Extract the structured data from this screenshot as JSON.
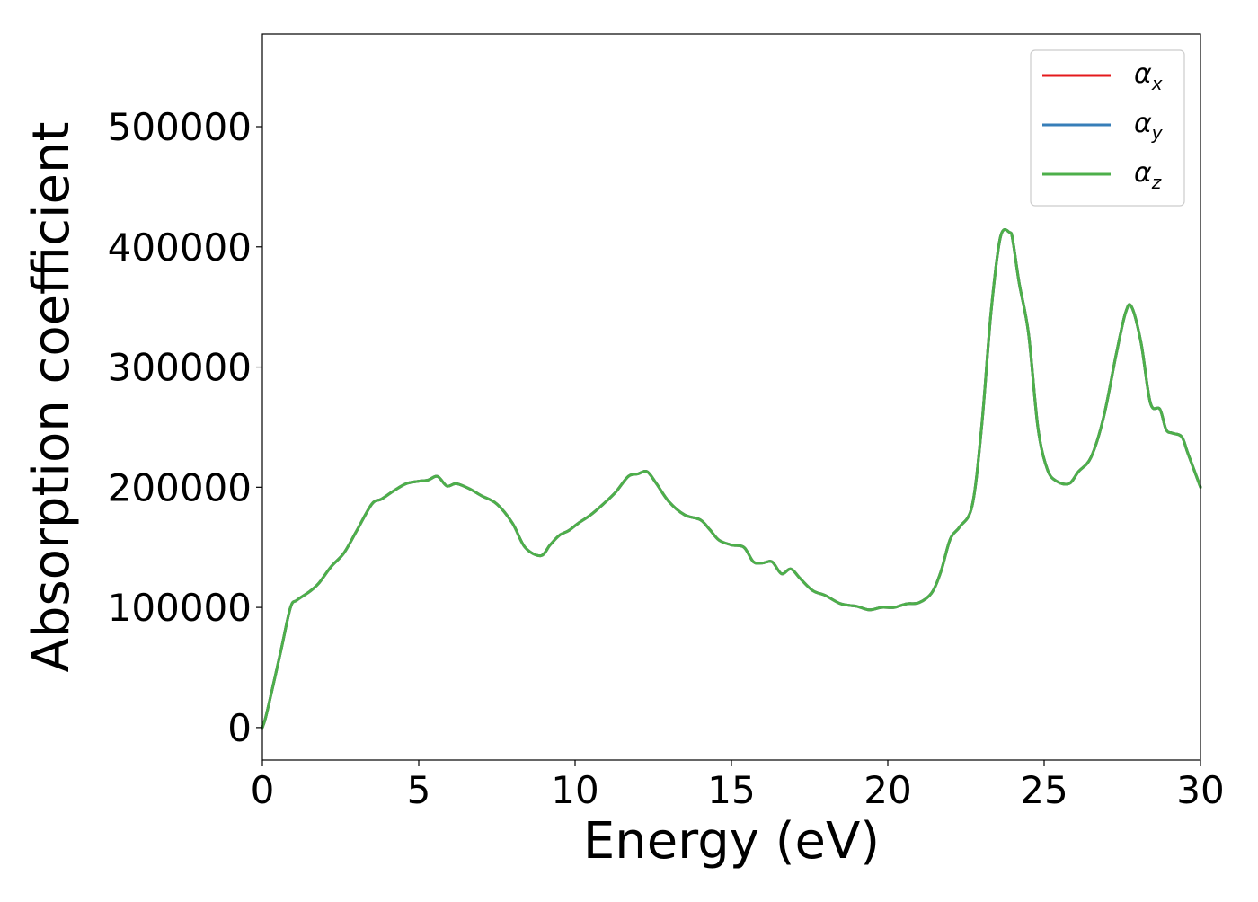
{
  "chart_data": {
    "type": "line",
    "title": "",
    "xlabel": "Energy (eV)",
    "ylabel": "Absorption coefficient",
    "xlim": [
      0,
      30
    ],
    "ylim": [
      -27000,
      577000
    ],
    "x_ticks": [
      0,
      5,
      10,
      15,
      20,
      25,
      30
    ],
    "x_tick_labels": [
      "0",
      "5",
      "10",
      "15",
      "20",
      "25",
      "30"
    ],
    "y_ticks": [
      0,
      100000,
      200000,
      300000,
      400000,
      500000
    ],
    "y_tick_labels": [
      "0",
      "100000",
      "200000",
      "300000",
      "400000",
      "500000"
    ],
    "grid": false,
    "legend_position": "top-right",
    "series": [
      {
        "name": "α",
        "subscript": "x",
        "color": "#e41a1c"
      },
      {
        "name": "α",
        "subscript": "y",
        "color": "#377eb8"
      },
      {
        "name": "α",
        "subscript": "z",
        "color": "#4daf4a"
      }
    ],
    "x": [
      0,
      0.1,
      0.3,
      0.6,
      0.9,
      1.1,
      1.5,
      1.8,
      2.2,
      2.6,
      3.0,
      3.5,
      3.8,
      4.2,
      4.6,
      5.0,
      5.3,
      5.6,
      5.9,
      6.2,
      6.6,
      7.0,
      7.5,
      8.0,
      8.4,
      8.9,
      9.2,
      9.5,
      9.8,
      10.1,
      10.5,
      10.9,
      11.3,
      11.7,
      12.0,
      12.3,
      12.6,
      13.0,
      13.5,
      14.0,
      14.3,
      14.6,
      15.0,
      15.4,
      15.7,
      16.0,
      16.3,
      16.6,
      16.9,
      17.2,
      17.6,
      18.0,
      18.5,
      19.0,
      19.4,
      19.8,
      20.2,
      20.6,
      21.0,
      21.4,
      21.7,
      22.0,
      22.3,
      22.7,
      23.0,
      23.3,
      23.6,
      23.9,
      24.0,
      24.2,
      24.5,
      24.8,
      25.1,
      25.4,
      25.8,
      26.1,
      26.5,
      26.9,
      27.3,
      27.6,
      27.8,
      28.1,
      28.4,
      28.7,
      28.9,
      29.1,
      29.4,
      29.6,
      30.0
    ],
    "y": [
      0,
      8000,
      30000,
      65000,
      100000,
      106000,
      113000,
      120000,
      134000,
      145000,
      163000,
      186000,
      190000,
      197000,
      203000,
      205000,
      206000,
      209000,
      201000,
      203000,
      199000,
      193000,
      186000,
      170000,
      150000,
      143000,
      152000,
      160000,
      164000,
      170000,
      177000,
      186000,
      196000,
      209000,
      211000,
      213000,
      203000,
      188000,
      177000,
      173000,
      165000,
      156000,
      152000,
      150000,
      138000,
      137000,
      138000,
      128000,
      132000,
      124000,
      114000,
      110000,
      103000,
      101000,
      98000,
      100000,
      100000,
      103000,
      104000,
      112000,
      130000,
      157000,
      167000,
      185000,
      250000,
      345000,
      408000,
      412000,
      405000,
      370000,
      328000,
      250000,
      215000,
      205000,
      203000,
      213000,
      225000,
      258000,
      310000,
      345000,
      350000,
      320000,
      270000,
      265000,
      248000,
      245000,
      242000,
      228000,
      200000
    ]
  }
}
